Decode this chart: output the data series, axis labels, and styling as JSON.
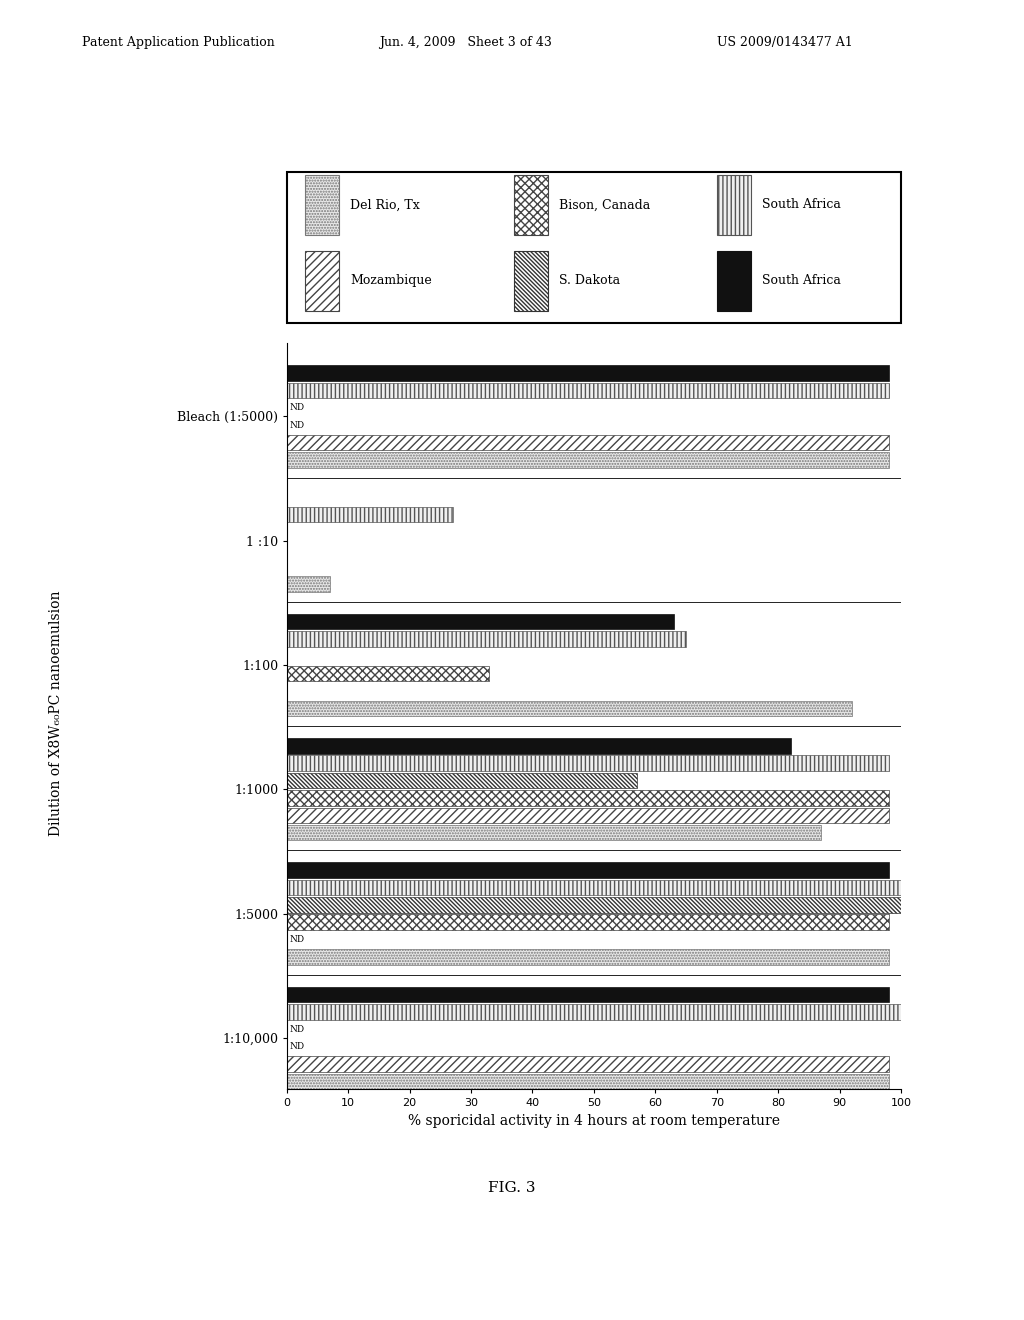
{
  "groups": [
    "Bleach (1:5000)",
    "1 :10",
    "1:100",
    "1:1000",
    "1:5000",
    "1:10,000"
  ],
  "series_order": [
    "Del Rio, Tx",
    "Mozambique",
    "Bison, Canada",
    "S. Dakota",
    "South Africa (bars)",
    "South Africa (solid)"
  ],
  "xlim": [
    0,
    100
  ],
  "xlabel": "% sporicidal activity in 4 hours at room temperature",
  "ylabel": "Dilution of X8W₆₀PC nanoemulsion",
  "fig_label": "FIG. 3",
  "header_left": "Patent Application Publication",
  "header_center": "Jun. 4, 2009   Sheet 3 of 43",
  "header_right": "US 2009/0143477 A1",
  "values": {
    "Bleach (1:5000)": [
      98,
      98,
      0,
      0,
      98,
      98
    ],
    "1 :10": [
      7,
      0,
      0,
      0,
      27,
      0
    ],
    "1:100": [
      92,
      0,
      33,
      0,
      65,
      63
    ],
    "1:1000": [
      87,
      98,
      98,
      57,
      98,
      82
    ],
    "1:5000": [
      98,
      0,
      98,
      100,
      100,
      98
    ],
    "1:10,000": [
      98,
      98,
      0,
      0,
      100,
      98
    ]
  },
  "nd_flags": {
    "Bleach (1:5000)": [
      false,
      false,
      true,
      true,
      false,
      false
    ],
    "1 :10": [
      false,
      false,
      false,
      false,
      false,
      false
    ],
    "1:100": [
      false,
      false,
      false,
      false,
      false,
      false
    ],
    "1:1000": [
      false,
      false,
      false,
      false,
      false,
      false
    ],
    "1:5000": [
      false,
      true,
      false,
      false,
      false,
      false
    ],
    "1:10,000": [
      false,
      false,
      true,
      true,
      false,
      false
    ]
  },
  "legend_row1": [
    "Del Rio, Tx",
    "Bison, Canada",
    "South Africa (bars)"
  ],
  "legend_row2": [
    "Mozambique",
    "S. Dakota",
    "South Africa (solid)"
  ]
}
